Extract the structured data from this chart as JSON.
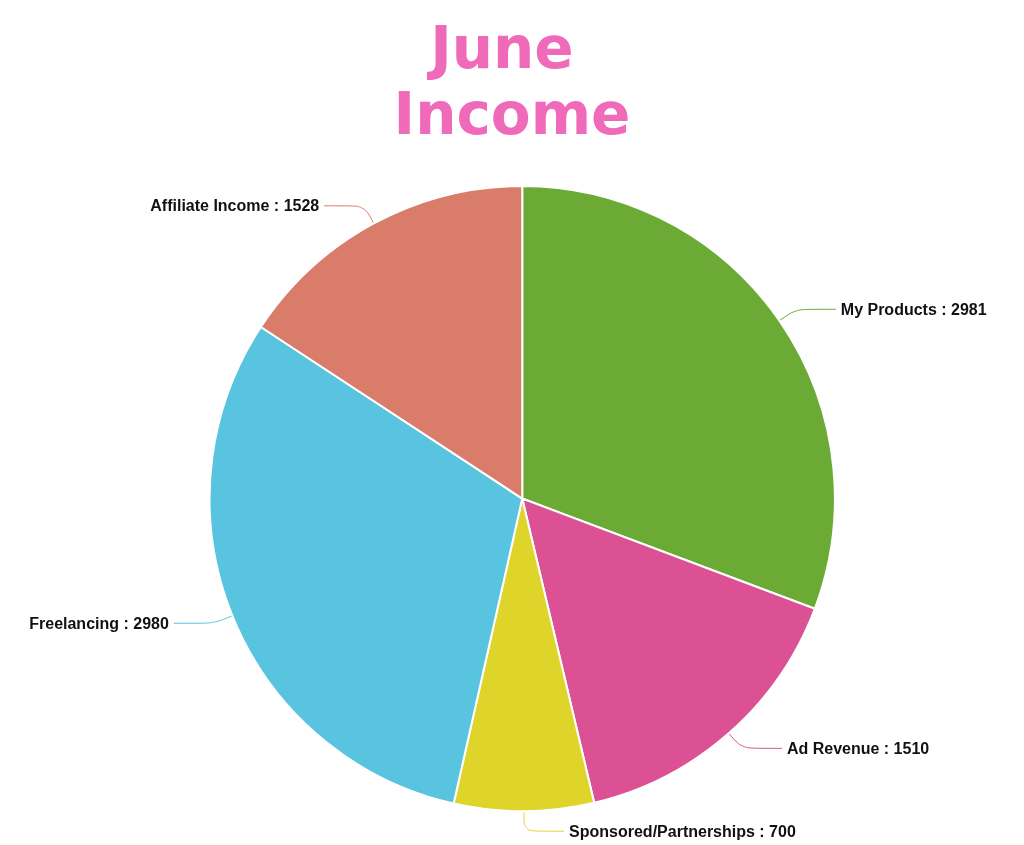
{
  "chart_data": {
    "type": "pie",
    "title": "June Income",
    "categories": [
      "My Products",
      "Ad Revenue",
      "Sponsored/Partnerships",
      "Freelancing",
      "Affiliate Income"
    ],
    "values": [
      2981,
      1510,
      700,
      2980,
      1528
    ],
    "value_labels": [
      ": 2981",
      ": 1510",
      ": 700",
      ": 2980",
      ": 1528"
    ],
    "colors": [
      "#6aaa35",
      "#dc5194",
      "#dfd52a",
      "#58c4e0",
      "#d97c69"
    ]
  }
}
